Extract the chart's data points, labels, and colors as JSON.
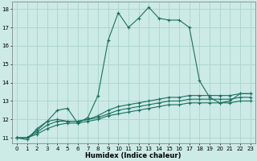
{
  "xlabel": "Humidex (Indice chaleur)",
  "background_color": "#cceae6",
  "grid_color": "#aad4cc",
  "line_color": "#1a7060",
  "xlim": [
    -0.5,
    23.5
  ],
  "ylim": [
    10.7,
    18.4
  ],
  "yticks": [
    11,
    12,
    13,
    14,
    15,
    16,
    17,
    18
  ],
  "xticks": [
    0,
    1,
    2,
    3,
    4,
    5,
    6,
    7,
    8,
    9,
    10,
    11,
    12,
    13,
    14,
    15,
    16,
    17,
    18,
    19,
    20,
    21,
    22,
    23
  ],
  "series": [
    [
      11.0,
      10.9,
      11.5,
      11.9,
      12.5,
      12.6,
      11.8,
      12.1,
      13.3,
      16.3,
      17.8,
      17.0,
      17.5,
      18.1,
      17.5,
      17.4,
      17.4,
      17.0,
      14.1,
      13.2,
      12.9,
      13.0,
      13.4,
      13.4
    ],
    [
      11.0,
      11.0,
      11.4,
      11.9,
      12.0,
      11.9,
      11.9,
      12.0,
      12.2,
      12.5,
      12.7,
      12.8,
      12.9,
      13.0,
      13.1,
      13.2,
      13.2,
      13.3,
      13.3,
      13.3,
      13.3,
      13.3,
      13.4,
      13.4
    ],
    [
      11.0,
      11.0,
      11.3,
      11.7,
      11.9,
      11.9,
      11.9,
      12.0,
      12.1,
      12.3,
      12.5,
      12.6,
      12.7,
      12.8,
      12.9,
      13.0,
      13.0,
      13.1,
      13.1,
      13.1,
      13.1,
      13.1,
      13.2,
      13.2
    ],
    [
      11.0,
      11.0,
      11.2,
      11.5,
      11.7,
      11.8,
      11.8,
      11.9,
      12.0,
      12.2,
      12.3,
      12.4,
      12.5,
      12.6,
      12.7,
      12.8,
      12.8,
      12.9,
      12.9,
      12.9,
      12.9,
      12.9,
      13.0,
      13.0
    ]
  ],
  "xlabel_fontsize": 6,
  "xlabel_fontweight": "bold",
  "tick_fontsize": 5,
  "marker_size": 3,
  "linewidth": 0.8
}
